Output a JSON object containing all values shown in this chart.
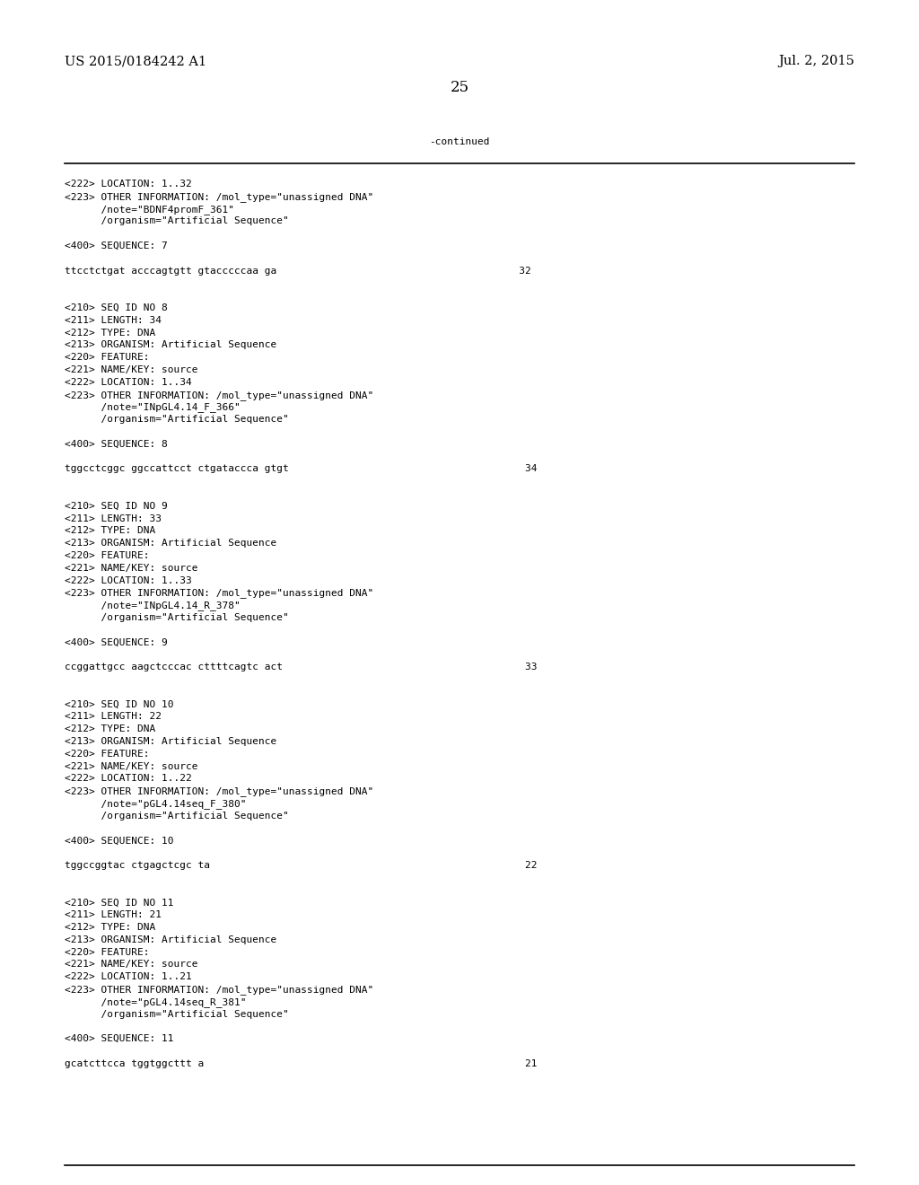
{
  "background_color": "#ffffff",
  "header_left": "US 2015/0184242 A1",
  "header_right": "Jul. 2, 2015",
  "page_number": "25",
  "continued_label": "-continued",
  "font_size_header": 10.5,
  "font_size_body": 8.0,
  "font_size_page": 12,
  "body_lines": [
    "<222> LOCATION: 1..32",
    "<223> OTHER INFORMATION: /mol_type=\"unassigned DNA\"",
    "      /note=\"BDNF4promF_361\"",
    "      /organism=\"Artificial Sequence\"",
    "",
    "<400> SEQUENCE: 7",
    "",
    "ttcctctgat acccagtgtt gtacccccaa ga                                        32",
    "",
    "",
    "<210> SEQ ID NO 8",
    "<211> LENGTH: 34",
    "<212> TYPE: DNA",
    "<213> ORGANISM: Artificial Sequence",
    "<220> FEATURE:",
    "<221> NAME/KEY: source",
    "<222> LOCATION: 1..34",
    "<223> OTHER INFORMATION: /mol_type=\"unassigned DNA\"",
    "      /note=\"INpGL4.14_F_366\"",
    "      /organism=\"Artificial Sequence\"",
    "",
    "<400> SEQUENCE: 8",
    "",
    "tggcctcggc ggccattcct ctgataccca gtgt                                       34",
    "",
    "",
    "<210> SEQ ID NO 9",
    "<211> LENGTH: 33",
    "<212> TYPE: DNA",
    "<213> ORGANISM: Artificial Sequence",
    "<220> FEATURE:",
    "<221> NAME/KEY: source",
    "<222> LOCATION: 1..33",
    "<223> OTHER INFORMATION: /mol_type=\"unassigned DNA\"",
    "      /note=\"INpGL4.14_R_378\"",
    "      /organism=\"Artificial Sequence\"",
    "",
    "<400> SEQUENCE: 9",
    "",
    "ccggattgcc aagctcccac cttttcagtc act                                        33",
    "",
    "",
    "<210> SEQ ID NO 10",
    "<211> LENGTH: 22",
    "<212> TYPE: DNA",
    "<213> ORGANISM: Artificial Sequence",
    "<220> FEATURE:",
    "<221> NAME/KEY: source",
    "<222> LOCATION: 1..22",
    "<223> OTHER INFORMATION: /mol_type=\"unassigned DNA\"",
    "      /note=\"pGL4.14seq_F_380\"",
    "      /organism=\"Artificial Sequence\"",
    "",
    "<400> SEQUENCE: 10",
    "",
    "tggccggtac ctgagctcgc ta                                                    22",
    "",
    "",
    "<210> SEQ ID NO 11",
    "<211> LENGTH: 21",
    "<212> TYPE: DNA",
    "<213> ORGANISM: Artificial Sequence",
    "<220> FEATURE:",
    "<221> NAME/KEY: source",
    "<222> LOCATION: 1..21",
    "<223> OTHER INFORMATION: /mol_type=\"unassigned DNA\"",
    "      /note=\"pGL4.14seq_R_381\"",
    "      /organism=\"Artificial Sequence\"",
    "",
    "<400> SEQUENCE: 11",
    "",
    "gcatcttcca tggtggcttt a                                                     21"
  ]
}
